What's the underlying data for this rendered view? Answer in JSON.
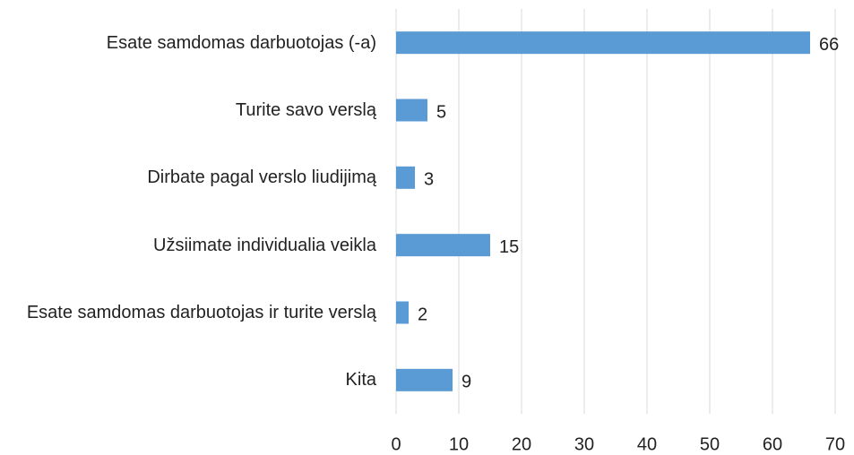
{
  "chart_data": {
    "type": "bar",
    "orientation": "horizontal",
    "categories": [
      "Esate samdomas darbuotojas (-a)",
      "Turite savo verslą",
      "Dirbate pagal verslo liudijimą",
      "Užsiimate individualia veikla",
      "Esate samdomas darbuotojas ir turite verslą",
      "Kita"
    ],
    "values": [
      66,
      5,
      3,
      15,
      2,
      9
    ],
    "color": "#5b9bd5",
    "xlim": [
      0,
      70
    ],
    "xticks": [
      0,
      10,
      20,
      30,
      40,
      50,
      60,
      70
    ],
    "grid": true
  }
}
